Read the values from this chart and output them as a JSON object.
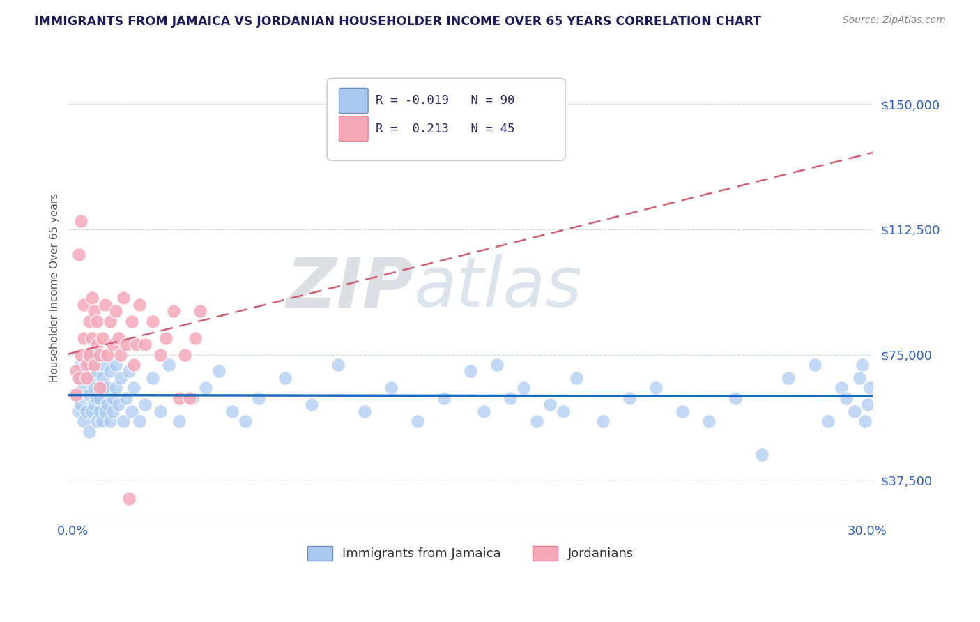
{
  "title": "IMMIGRANTS FROM JAMAICA VS JORDANIAN HOUSEHOLDER INCOME OVER 65 YEARS CORRELATION CHART",
  "source": "Source: ZipAtlas.com",
  "ylabel": "Householder Income Over 65 years",
  "xlim": [
    -0.002,
    0.302
  ],
  "ylim": [
    25000,
    165000
  ],
  "yticks": [
    37500,
    75000,
    112500,
    150000
  ],
  "ytick_labels": [
    "$37,500",
    "$75,000",
    "$112,500",
    "$150,000"
  ],
  "xticks": [
    0.0,
    0.05,
    0.1,
    0.15,
    0.2,
    0.25,
    0.3
  ],
  "xtick_labels": [
    "0.0%",
    "",
    "",
    "",
    "",
    "",
    "30.0%"
  ],
  "legend1_color": "#a8c8f0",
  "legend2_color": "#f4a8b8",
  "legend1_border": "#7090c0",
  "legend2_border": "#e08090",
  "trend1_color": "#1a6bbf",
  "trend2_color": "#d06070",
  "grid_color": "#c8d8e8",
  "title_color": "#1a1a5a",
  "axis_color": "#3060c0",
  "watermark_color": "#c8d8e8",
  "jamaica_x": [
    0.001,
    0.002,
    0.002,
    0.003,
    0.003,
    0.004,
    0.004,
    0.005,
    0.005,
    0.006,
    0.006,
    0.006,
    0.007,
    0.007,
    0.007,
    0.008,
    0.008,
    0.008,
    0.009,
    0.009,
    0.009,
    0.01,
    0.01,
    0.01,
    0.011,
    0.011,
    0.011,
    0.012,
    0.012,
    0.013,
    0.013,
    0.014,
    0.014,
    0.015,
    0.015,
    0.016,
    0.016,
    0.017,
    0.018,
    0.019,
    0.02,
    0.021,
    0.022,
    0.023,
    0.025,
    0.027,
    0.03,
    0.033,
    0.036,
    0.04,
    0.045,
    0.05,
    0.055,
    0.06,
    0.065,
    0.07,
    0.08,
    0.09,
    0.1,
    0.11,
    0.12,
    0.13,
    0.14,
    0.15,
    0.155,
    0.16,
    0.165,
    0.17,
    0.175,
    0.18,
    0.185,
    0.19,
    0.2,
    0.21,
    0.22,
    0.23,
    0.24,
    0.25,
    0.26,
    0.27,
    0.28,
    0.285,
    0.29,
    0.292,
    0.295,
    0.297,
    0.298,
    0.299,
    0.3,
    0.301
  ],
  "jamaica_y": [
    63000,
    58000,
    68000,
    72000,
    60000,
    65000,
    55000,
    70000,
    58000,
    63000,
    72000,
    52000,
    68000,
    75000,
    58000,
    65000,
    60000,
    72000,
    62000,
    55000,
    70000,
    58000,
    75000,
    62000,
    65000,
    55000,
    68000,
    58000,
    72000,
    60000,
    65000,
    55000,
    70000,
    62000,
    58000,
    72000,
    65000,
    60000,
    68000,
    55000,
    62000,
    70000,
    58000,
    65000,
    55000,
    60000,
    68000,
    58000,
    72000,
    55000,
    62000,
    65000,
    70000,
    58000,
    55000,
    62000,
    68000,
    60000,
    72000,
    58000,
    65000,
    55000,
    62000,
    70000,
    58000,
    72000,
    62000,
    65000,
    55000,
    60000,
    58000,
    68000,
    55000,
    62000,
    65000,
    58000,
    55000,
    62000,
    45000,
    68000,
    72000,
    55000,
    65000,
    62000,
    58000,
    68000,
    72000,
    55000,
    60000,
    65000
  ],
  "jordan_x": [
    0.001,
    0.001,
    0.002,
    0.002,
    0.003,
    0.003,
    0.004,
    0.004,
    0.005,
    0.005,
    0.006,
    0.006,
    0.007,
    0.007,
    0.008,
    0.008,
    0.009,
    0.009,
    0.01,
    0.01,
    0.011,
    0.012,
    0.013,
    0.014,
    0.015,
    0.016,
    0.017,
    0.018,
    0.019,
    0.02,
    0.021,
    0.022,
    0.023,
    0.024,
    0.025,
    0.027,
    0.03,
    0.033,
    0.035,
    0.038,
    0.04,
    0.042,
    0.044,
    0.046,
    0.048
  ],
  "jordan_y": [
    63000,
    70000,
    105000,
    68000,
    75000,
    115000,
    80000,
    90000,
    72000,
    68000,
    85000,
    75000,
    92000,
    80000,
    88000,
    72000,
    78000,
    85000,
    75000,
    65000,
    80000,
    90000,
    75000,
    85000,
    78000,
    88000,
    80000,
    75000,
    92000,
    78000,
    32000,
    85000,
    72000,
    78000,
    90000,
    78000,
    85000,
    75000,
    80000,
    88000,
    62000,
    75000,
    62000,
    80000,
    88000
  ]
}
